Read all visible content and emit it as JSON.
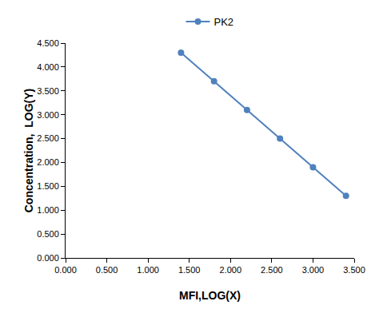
{
  "chart_data": {
    "type": "line",
    "x_label": "MFI,LOG(X)",
    "y_label": "Concentration,  LOG(Y)",
    "x": [
      1.4,
      1.8,
      2.2,
      2.6,
      3.0,
      3.4
    ],
    "series": [
      {
        "name": "PK2",
        "color": "#4f81bd",
        "marker": "circle",
        "line_style": "solid",
        "values": [
          4.3,
          3.7,
          3.1,
          2.5,
          1.9,
          1.3
        ]
      }
    ],
    "xlim": [
      0,
      3.5
    ],
    "xticks": [
      {
        "value": 0,
        "label": "0.000"
      },
      {
        "value": 0.5,
        "label": "0.500"
      },
      {
        "value": 1,
        "label": "1.000"
      },
      {
        "value": 1.5,
        "label": "1.500"
      },
      {
        "value": 2,
        "label": "2.000"
      },
      {
        "value": 2.5,
        "label": "2.500"
      },
      {
        "value": 3,
        "label": "3.000"
      },
      {
        "value": 3.5,
        "label": "3.500"
      }
    ],
    "ylim": [
      0,
      4.5
    ],
    "yticks": [
      {
        "value": 0,
        "label": "0.000"
      },
      {
        "value": 0.5,
        "label": "0.500"
      },
      {
        "value": 1,
        "label": "1.000"
      },
      {
        "value": 1.5,
        "label": "1.500"
      },
      {
        "value": 2,
        "label": "2.000"
      },
      {
        "value": 2.5,
        "label": "2.500"
      },
      {
        "value": 3,
        "label": "3.000"
      },
      {
        "value": 3.5,
        "label": "3.500"
      },
      {
        "value": 4,
        "label": "4.000"
      },
      {
        "value": 4.5,
        "label": "4.500"
      }
    ],
    "grid": false,
    "legend": "top"
  }
}
